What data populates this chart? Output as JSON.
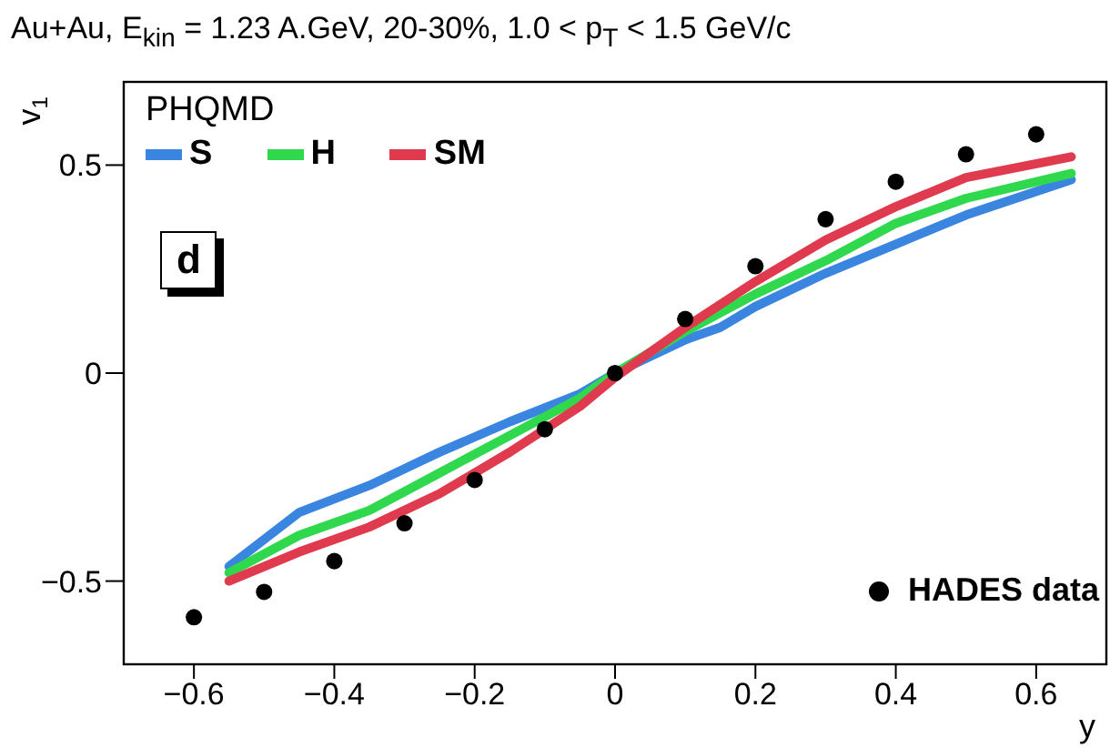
{
  "chart_data": {
    "type": "line",
    "title": "Au+Au, E$_{kin}$ = 1.23 A.GeV, 20-30%, 1.0 < p$_{T}$ < 1.5 GeV/c",
    "xlabel": "y",
    "ylabel": "v$_{1}$",
    "legend_title": "PHQMD",
    "annotations": [
      "d"
    ],
    "xlim": [
      -0.7,
      0.7
    ],
    "ylim": [
      -0.7,
      0.7
    ],
    "xticks": [
      -0.6,
      -0.4,
      -0.2,
      0,
      0.2,
      0.4,
      0.6
    ],
    "yticks": [
      -0.5,
      0,
      0.5
    ],
    "grid": false,
    "legend": "top left",
    "marker": "none",
    "line_style": "solid",
    "series": [
      {
        "name": "S",
        "color": "#3a85e0",
        "x": [
          -0.55,
          -0.45,
          -0.35,
          -0.25,
          -0.15,
          -0.05,
          0,
          0.1,
          0.15,
          0.2,
          0.3,
          0.4,
          0.5,
          0.65
        ],
        "values": [
          -0.465,
          -0.335,
          -0.27,
          -0.19,
          -0.117,
          -0.05,
          0,
          0.08,
          0.11,
          0.16,
          0.24,
          0.31,
          0.38,
          0.465
        ]
      },
      {
        "name": "H",
        "color": "#2fd84c",
        "x": [
          -0.55,
          -0.45,
          -0.35,
          -0.25,
          -0.15,
          -0.05,
          0,
          0.1,
          0.2,
          0.3,
          0.4,
          0.5,
          0.65
        ],
        "values": [
          -0.48,
          -0.39,
          -0.33,
          -0.24,
          -0.15,
          -0.06,
          0,
          0.1,
          0.19,
          0.27,
          0.36,
          0.42,
          0.48
        ]
      },
      {
        "name": "SM",
        "color": "#e03a4e",
        "x": [
          -0.55,
          -0.45,
          -0.35,
          -0.25,
          -0.15,
          -0.05,
          0,
          0.1,
          0.2,
          0.3,
          0.4,
          0.5,
          0.65
        ],
        "values": [
          -0.5,
          -0.43,
          -0.37,
          -0.29,
          -0.19,
          -0.08,
          -0.01,
          0.11,
          0.22,
          0.32,
          0.4,
          0.47,
          0.52
        ]
      },
      {
        "name": "HADES data",
        "type": "scatter",
        "marker": "circle",
        "color": "#000000",
        "x": [
          -0.6,
          -0.5,
          -0.4,
          -0.3,
          -0.2,
          -0.1,
          0,
          0.1,
          0.2,
          0.3,
          0.4,
          0.5,
          0.6
        ],
        "values": [
          -0.587,
          -0.526,
          -0.452,
          -0.361,
          -0.257,
          -0.135,
          0,
          0.13,
          0.257,
          0.37,
          0.46,
          0.526,
          0.574
        ]
      }
    ]
  }
}
